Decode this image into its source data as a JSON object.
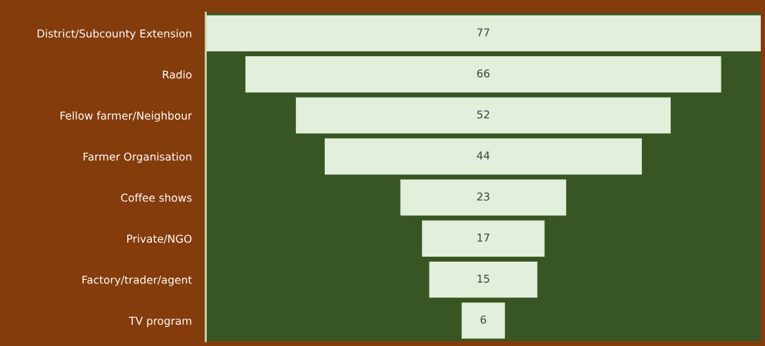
{
  "chart_data": {
    "type": "other",
    "categories": [
      "District/Subcounty Extension",
      "Radio",
      "Fellow farmer/Neighbour",
      "Farmer Organisation",
      "Coffee shows",
      "Private/NGO",
      "Factory/trader/agent",
      "TV program"
    ],
    "values": [
      77,
      66,
      52,
      44,
      23,
      17,
      15,
      6
    ],
    "color": "#e2efda",
    "data_labels": true
  }
}
